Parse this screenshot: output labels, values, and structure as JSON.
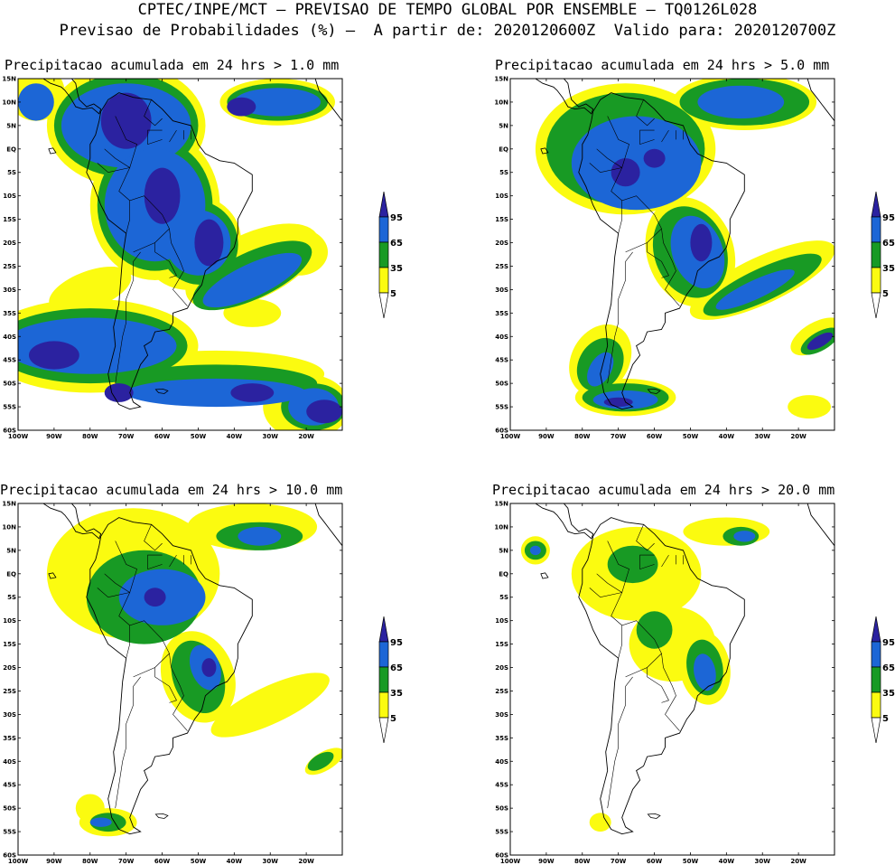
{
  "header": {
    "line1": "CPTEC/INPE/MCT – PREVISAO DE TEMPO GLOBAL POR ENSEMBLE – TQ0126L028",
    "line2": "Previsao de Probabilidades (%) –  A partir de: 2020120600Z  Valido para: 2020120700Z"
  },
  "panels": [
    {
      "title": "Precipitacao acumulada em 24 hrs > 1.0 mm"
    },
    {
      "title": "Precipitacao acumulada em 24 hrs > 5.0 mm"
    },
    {
      "title": "Precipitacao acumulada em 24 hrs > 10.0 mm"
    },
    {
      "title": "Precipitacao acumulada em 24 hrs > 20.0 mm"
    }
  ],
  "axes": {
    "lat_labels": [
      "15N",
      "10N",
      "5N",
      "EQ",
      "5S",
      "10S",
      "15S",
      "20S",
      "25S",
      "30S",
      "35S",
      "40S",
      "45S",
      "50S",
      "55S",
      "60S"
    ],
    "lon_labels": [
      "100W",
      "90W",
      "80W",
      "70W",
      "60W",
      "50W",
      "40W",
      "30W",
      "20W"
    ]
  },
  "legend": {
    "labels": [
      "95",
      "65",
      "35",
      "5"
    ],
    "colors": {
      "c95": "#2b22a0",
      "c65": "#1c66d6",
      "c35": "#189a24",
      "c5": "#fbfb10",
      "coast": "#000000"
    }
  }
}
